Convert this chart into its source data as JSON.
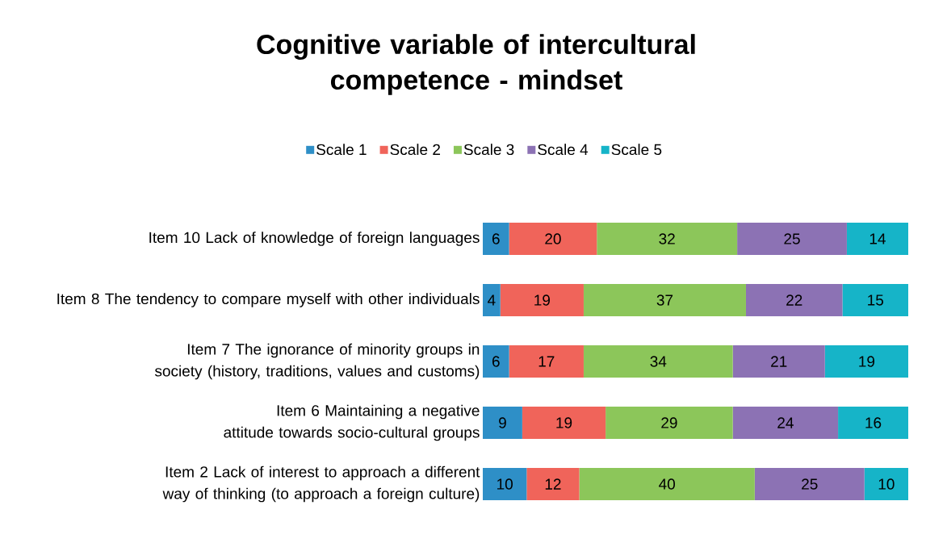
{
  "chart_data": {
    "type": "bar",
    "orientation": "horizontal",
    "stacked": true,
    "data_labels": true,
    "legend": "top",
    "tick_labels": "y",
    "title": "Cognitive variable of intercultural competence - mindset",
    "categories": [
      "Item 10 Lack of knowledge of foreign languages",
      "Item 8 The tendency to compare myself with other individuals",
      "Item 7 The ignorance of minority groups in society (history, traditions, values and customs)",
      "Item 6 Maintaining a negative attitude towards socio-cultural groups",
      "Item 2 Lack of interest to approach a different way of thinking (to approach a foreign culture)"
    ],
    "series": [
      {
        "name": "Scale 1",
        "color": "#2e8fc7",
        "values": [
          6,
          4,
          6,
          9,
          10
        ]
      },
      {
        "name": "Scale 2",
        "color": "#f0645a",
        "values": [
          20,
          19,
          17,
          19,
          12
        ]
      },
      {
        "name": "Scale 3",
        "color": "#8cc65a",
        "values": [
          32,
          37,
          34,
          29,
          40
        ]
      },
      {
        "name": "Scale 4",
        "color": "#8c72b4",
        "values": [
          25,
          22,
          21,
          24,
          25
        ]
      },
      {
        "name": "Scale 5",
        "color": "#16b4c8",
        "values": [
          14,
          15,
          19,
          16,
          10
        ]
      }
    ]
  }
}
